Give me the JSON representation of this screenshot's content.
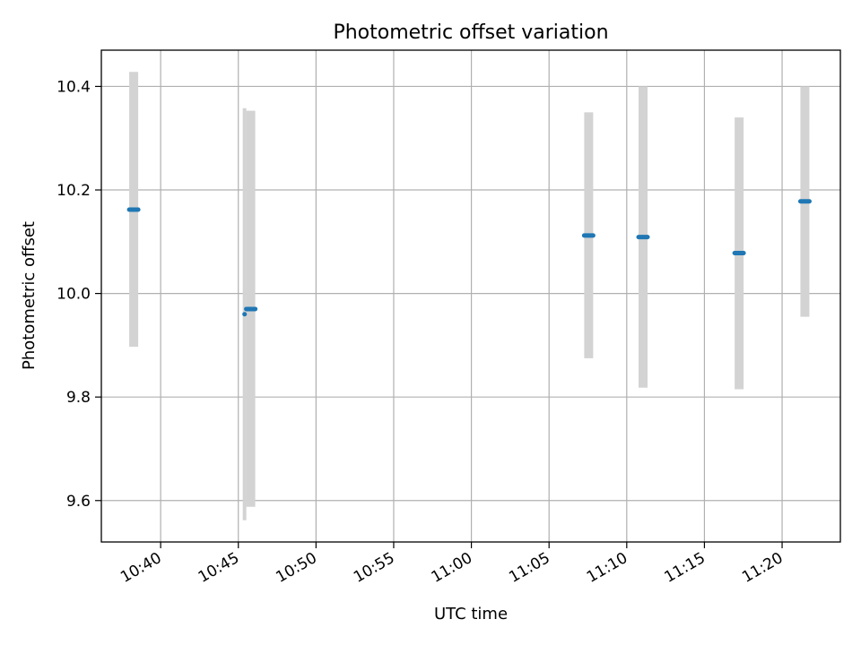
{
  "chart_data": {
    "type": "scatter",
    "title": "Photometric offset variation",
    "xlabel": "UTC time",
    "ylabel": "Photometric offset",
    "x_axis_type": "time",
    "xlim": [
      "10:36:11",
      "11:23:45"
    ],
    "ylim": [
      9.52,
      10.47
    ],
    "grid": true,
    "x_ticks": [
      "10:40",
      "10:45",
      "10:50",
      "10:55",
      "11:00",
      "11:05",
      "11:10",
      "11:15",
      "11:20"
    ],
    "y_ticks": [
      "9.6",
      "9.8",
      "10.0",
      "10.2",
      "10.4"
    ],
    "point_color": "#1f77b4",
    "errorbar_color": "#d3d3d3",
    "points": [
      {
        "x": "10:38:16",
        "y": 10.162,
        "ymin": 9.897,
        "ymax": 10.428
      },
      {
        "x": "10:45:24",
        "y": 9.96,
        "ymin": 9.562,
        "ymax": 10.358
      },
      {
        "x": "10:45:48",
        "y": 9.97,
        "ymin": 9.588,
        "ymax": 10.353
      },
      {
        "x": "11:07:33",
        "y": 10.112,
        "ymin": 9.875,
        "ymax": 10.35
      },
      {
        "x": "11:11:03",
        "y": 10.109,
        "ymin": 9.818,
        "ymax": 10.4
      },
      {
        "x": "11:17:14",
        "y": 10.078,
        "ymin": 9.815,
        "ymax": 10.34
      },
      {
        "x": "11:21:28",
        "y": 10.178,
        "ymin": 9.955,
        "ymax": 10.4
      }
    ]
  }
}
